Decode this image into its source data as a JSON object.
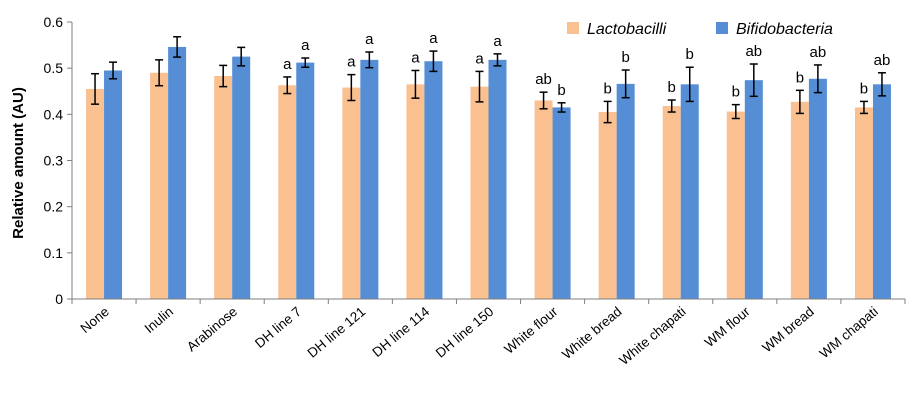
{
  "chart_data": {
    "type": "bar",
    "ylabel": "Relative amount (AU)",
    "ylim": [
      0,
      0.6
    ],
    "yticks": [
      "0",
      "0.1",
      "0.2",
      "0.3",
      "0.4",
      "0.5",
      "0.6"
    ],
    "categories": [
      "None",
      "Inulin",
      "Arabinose",
      "DH line 7",
      "DH line 121",
      "DH line 114",
      "DH line 150",
      "White flour",
      "White bread",
      "White chapati",
      "WM flour",
      "WM bread",
      "WM chapati"
    ],
    "series": [
      {
        "name": "Lactobacilli",
        "color": "#fac090",
        "values": [
          0.455,
          0.49,
          0.483,
          0.463,
          0.458,
          0.465,
          0.46,
          0.43,
          0.405,
          0.418,
          0.406,
          0.427,
          0.415
        ],
        "errors": [
          0.033,
          0.028,
          0.023,
          0.018,
          0.028,
          0.03,
          0.033,
          0.018,
          0.023,
          0.013,
          0.015,
          0.025,
          0.013
        ],
        "labels": [
          "",
          "",
          "",
          "a",
          "a",
          "a",
          "a",
          "ab",
          "b",
          "b",
          "b",
          "b",
          "b"
        ]
      },
      {
        "name": "Bifidobacteria",
        "color": "#558ed5",
        "values": [
          0.495,
          0.546,
          0.525,
          0.512,
          0.518,
          0.515,
          0.518,
          0.415,
          0.466,
          0.465,
          0.474,
          0.477,
          0.465
        ],
        "errors": [
          0.018,
          0.022,
          0.02,
          0.01,
          0.017,
          0.022,
          0.013,
          0.01,
          0.03,
          0.037,
          0.035,
          0.03,
          0.025
        ],
        "labels": [
          "",
          "",
          "",
          "a",
          "a",
          "a",
          "a",
          "b",
          "b",
          "b",
          "ab",
          "ab",
          "ab"
        ]
      }
    ],
    "legend_position": "top-right",
    "grid": false
  }
}
